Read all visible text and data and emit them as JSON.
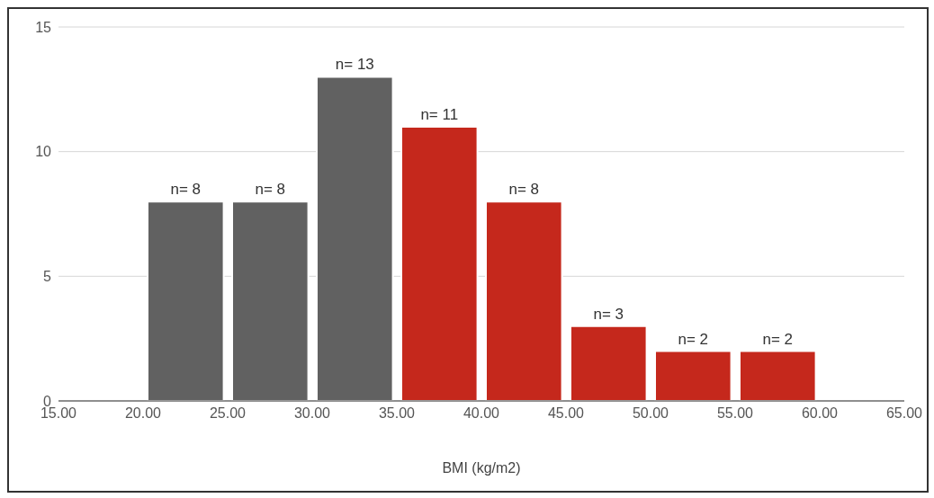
{
  "chart_data": {
    "type": "histogram",
    "xlabel": "BMI (kg/m2)",
    "bins": [
      20,
      25,
      30,
      35,
      40,
      45,
      50,
      55,
      60
    ],
    "values": [
      8,
      8,
      13,
      11,
      8,
      3,
      2,
      2
    ],
    "colors": [
      "#616161",
      "#616161",
      "#616161",
      "#c5281c",
      "#c5281c",
      "#c5281c",
      "#c5281c",
      "#c5281c"
    ],
    "value_labels": [
      "n= 8",
      "n= 8",
      "n= 13",
      "n= 11",
      "n= 8",
      "n= 3",
      "n= 2",
      "n= 2"
    ],
    "xlim": [
      15,
      65
    ],
    "xticks": [
      {
        "value": 15,
        "label": "15.00"
      },
      {
        "value": 20,
        "label": "20.00"
      },
      {
        "value": 25,
        "label": "25.00"
      },
      {
        "value": 30,
        "label": "30.00"
      },
      {
        "value": 35,
        "label": "35.00"
      },
      {
        "value": 40,
        "label": "40.00"
      },
      {
        "value": 45,
        "label": "45.00"
      },
      {
        "value": 50,
        "label": "50.00"
      },
      {
        "value": 55,
        "label": "55.00"
      },
      {
        "value": 60,
        "label": "60.00"
      },
      {
        "value": 65,
        "label": "65.00"
      }
    ],
    "ylim": [
      0,
      15
    ],
    "yticks": [
      0,
      5,
      10,
      15
    ],
    "grid": "y"
  }
}
